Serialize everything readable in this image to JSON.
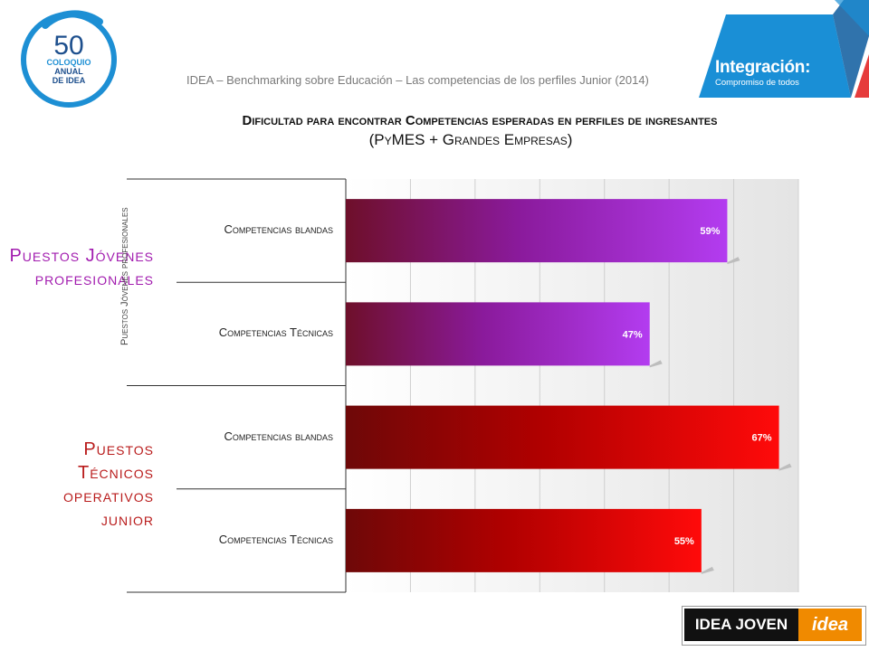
{
  "header": {
    "text": "IDEA – Benchmarking sobre Educación – Las competencias de los perfiles Junior (2014)"
  },
  "logo": {
    "number": "50",
    "line1": "COLOQUIO",
    "line2": "ANUAL",
    "line3": "DE IDEA"
  },
  "banner": {
    "title": "Integración:",
    "subtitle": "Compromiso de todos",
    "colors": {
      "blue": "#1a8fd6",
      "red": "#e63c3c",
      "dark": "#0c5a9e"
    }
  },
  "title": {
    "line1": "Dificultad para encontrar Competencias esperadas en perfiles de ingresantes",
    "line2": "(PyMES + Grandes Empresas)"
  },
  "groups": [
    {
      "label": "Puestos Jóvenes profesionales",
      "color": "#a21caf"
    },
    {
      "label": "Puestos Técnicos operativos junior",
      "color": "#b91c1c"
    }
  ],
  "overlap_text": "Puestos Jóvenes profesionales",
  "chart_data": {
    "type": "bar",
    "orientation": "horizontal",
    "categories": [
      "Competencias blandas",
      "Competencias Técnicas",
      "Competencias blandas",
      "Competencias Técnicas"
    ],
    "values": [
      59,
      47,
      67,
      55
    ],
    "value_labels": [
      "59%",
      "47%",
      "67%",
      "55%"
    ],
    "colors": [
      "#b026e8",
      "#b026e8",
      "#f00000",
      "#f00000"
    ],
    "xlim": [
      0,
      70
    ],
    "grid": true
  },
  "footer": {
    "joven": "IDEA JOVEN",
    "idea": "idea"
  }
}
